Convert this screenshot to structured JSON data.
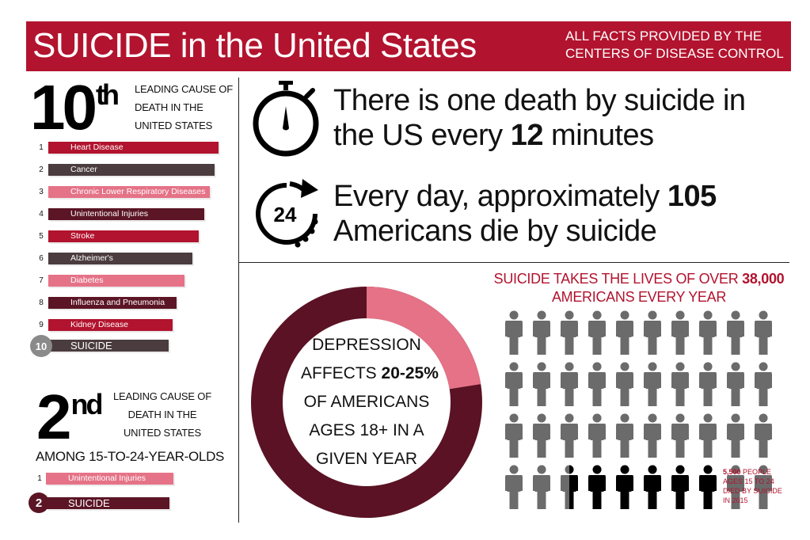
{
  "header": {
    "title": "SUICIDE in the United States",
    "source": "ALL FACTS PROVIDED BY THE\nCENTERS OF DISEASE CONTROL"
  },
  "rank_all": {
    "rank_number": "10",
    "rank_suffix": "th",
    "description": "LEADING CAUSE OF\nDEATH IN THE\nUNITED STATES",
    "causes": [
      {
        "num": "1",
        "label": "Heart Disease",
        "color": "#b2132e"
      },
      {
        "num": "2",
        "label": "Cancer",
        "color": "#4a3c3f"
      },
      {
        "num": "3",
        "label": "Chronic Lower Respiratory Diseases",
        "color": "#e57287"
      },
      {
        "num": "4",
        "label": "Unintentional Injuries",
        "color": "#5b1525"
      },
      {
        "num": "5",
        "label": "Stroke",
        "color": "#b2132e"
      },
      {
        "num": "6",
        "label": "Alzheimer's",
        "color": "#4a3c3f"
      },
      {
        "num": "7",
        "label": "Diabetes",
        "color": "#e57287"
      },
      {
        "num": "8",
        "label": "Influenza and Pneumonia",
        "color": "#5b1525"
      },
      {
        "num": "9",
        "label": "Kidney Disease",
        "color": "#b2132e"
      },
      {
        "num": "10",
        "label": "SUICIDE",
        "color": "#4a3c3f"
      }
    ]
  },
  "rank_youth": {
    "rank_number": "2",
    "rank_suffix": "nd",
    "description": "LEADING CAUSE OF\nDEATH IN THE\nUNITED STATES",
    "subhead": "AMONG 15-TO-24-YEAR-OLDS",
    "causes": [
      {
        "num": "1",
        "label": "Unintentional Injuries",
        "color": "#e57287"
      },
      {
        "num": "2",
        "label": "SUICIDE",
        "color": "#5b1525"
      }
    ]
  },
  "facts": {
    "minute_pre": "There is one death by suicide in\nthe US every ",
    "minute_value": "12",
    "minute_post": " minutes",
    "daily_pre": "Every day, approximately ",
    "daily_value": "105",
    "daily_post": "\nAmericans die by suicide",
    "clock_icon": "24"
  },
  "depression": {
    "line1": "DEPRESSION",
    "line2_pre": "AFFECTS ",
    "line2_value": "20-25%",
    "line3": "OF AMERICANS",
    "line4": "AGES 18+ IN A",
    "line5": "GIVEN YEAR",
    "fraction": 0.225,
    "color_main": "#5a1224",
    "color_highlight": "#e57287"
  },
  "people": {
    "title_pre": "SUICIDE TAKES THE LIVES OF OVER ",
    "title_value": "38,000",
    "title_post": "AMERICANS EVERY YEAR",
    "caption_value": "5,500",
    "caption_text": " PEOPLE\nAGES 15 TO 24\nDIED BY SUICIDE\nIN 2015",
    "grey": "#6b6b6b",
    "black": "#000000"
  }
}
